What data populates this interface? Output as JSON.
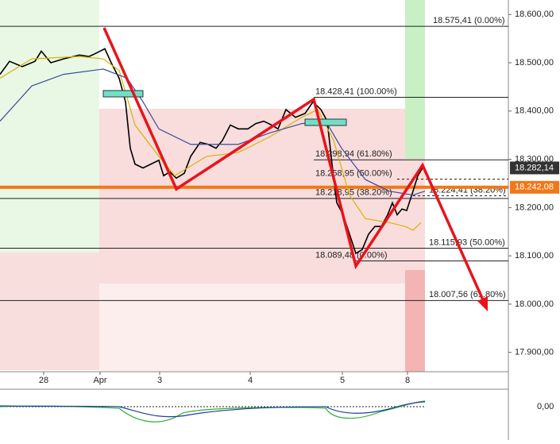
{
  "chart_data": {
    "type": "line",
    "ylim": [
      17860,
      18630
    ],
    "yticks": [
      {
        "value": 18600,
        "label": "18.600,00"
      },
      {
        "value": 18500,
        "label": "18.500,00"
      },
      {
        "value": 18400,
        "label": "18.400,00"
      },
      {
        "value": 18300,
        "label": "18.300,00"
      },
      {
        "value": 18200,
        "label": "18.200,00"
      },
      {
        "value": 18100,
        "label": "18.100,00"
      },
      {
        "value": 18000,
        "label": "18.000,00"
      },
      {
        "value": 17900,
        "label": "17.900,00"
      }
    ],
    "xlim": [
      0,
      160
    ],
    "xticks": [
      {
        "value": 13.75,
        "label": "28"
      },
      {
        "value": 31.5,
        "label": "Apr"
      },
      {
        "value": 50.25,
        "label": "3"
      },
      {
        "value": 78.75,
        "label": "4"
      },
      {
        "value": 107.75,
        "label": "5"
      },
      {
        "value": 128.25,
        "label": "8"
      }
    ],
    "series": [
      {
        "color": "#000000",
        "x": [
          0,
          3,
          7,
          11,
          13,
          16,
          20,
          25,
          28,
          30,
          33,
          35,
          37.5,
          39.5,
          41,
          42.5,
          45,
          47.5,
          50,
          51.5,
          53.5,
          55.5,
          58,
          60,
          63,
          65.5,
          68,
          70,
          72.5,
          75,
          78,
          80.5,
          83,
          85.5,
          87.5,
          90,
          93,
          96,
          98.5,
          101,
          103,
          104.5,
          106,
          108,
          110,
          112,
          114,
          116,
          118,
          120,
          122,
          123.5,
          125,
          126.5,
          128,
          130,
          131.5,
          133
        ],
        "values": [
          18476,
          18503,
          18492,
          18503,
          18524,
          18500,
          18508,
          18516,
          18513,
          18519,
          18529,
          18500,
          18468,
          18419,
          18323,
          18290,
          18282,
          18290,
          18298,
          18266,
          18274,
          18261,
          18271,
          18306,
          18335,
          18331,
          18323,
          18339,
          18371,
          18363,
          18363,
          18374,
          18379,
          18371,
          18363,
          18403,
          18387,
          18395,
          18419,
          18403,
          18379,
          18290,
          18210,
          18185,
          18145,
          18105,
          18113,
          18145,
          18161,
          18161,
          18185,
          18210,
          18185,
          18197,
          18194,
          18234,
          18266,
          18282
        ]
      },
      {
        "color": "#d8b400",
        "x": [
          0,
          10,
          25,
          32.5,
          37.5,
          42.5,
          50,
          55,
          65,
          75,
          85,
          95,
          100,
          105,
          110,
          115,
          122.5,
          127.5,
          130,
          132.5
        ],
        "values": [
          18468,
          18508,
          18513,
          18508,
          18484,
          18371,
          18306,
          18266,
          18306,
          18314,
          18347,
          18387,
          18403,
          18339,
          18226,
          18177,
          18169,
          18161,
          18153,
          18169
        ]
      },
      {
        "color": "#3a4aa0",
        "x": [
          0,
          10,
          20,
          32.5,
          40,
          45,
          50,
          60,
          75,
          85,
          95,
          102.5,
          107.5,
          115,
          122.5,
          130,
          133.75
        ],
        "values": [
          18379,
          18452,
          18476,
          18487,
          18468,
          18419,
          18363,
          18331,
          18331,
          18355,
          18374,
          18379,
          18323,
          18258,
          18234,
          18226,
          18234
        ]
      }
    ],
    "levels": [
      {
        "value": 18575.41,
        "label": "18.575,41 (0.00%)"
      },
      {
        "value": 18428.41,
        "label": "18.428,41 (100.00%)"
      },
      {
        "value": 18298.94,
        "label": "18.298,94 (61.80%)"
      },
      {
        "value": 18258.95,
        "label": "18.258,95 (50.00%)"
      },
      {
        "value": 18218.95,
        "label": "18.218,95 (38.20%)"
      },
      {
        "value": 18224.41,
        "label": "18.224,41 (38.20%)"
      },
      {
        "value": 18115.93,
        "label": "18.115,93 (50.00%)"
      },
      {
        "value": 18089.48,
        "label": "18.089,48 (0.00%)"
      },
      {
        "value": 18007.56,
        "label": "18.007,56 (61.80%)"
      }
    ],
    "current_price": {
      "value": 18282.14,
      "label": "18.282,14"
    },
    "reference_price": {
      "value": 18242.08,
      "label": "18.242,08"
    },
    "oscillator": {
      "yticks": [
        {
          "value": 0,
          "label": "0,00"
        }
      ]
    }
  }
}
